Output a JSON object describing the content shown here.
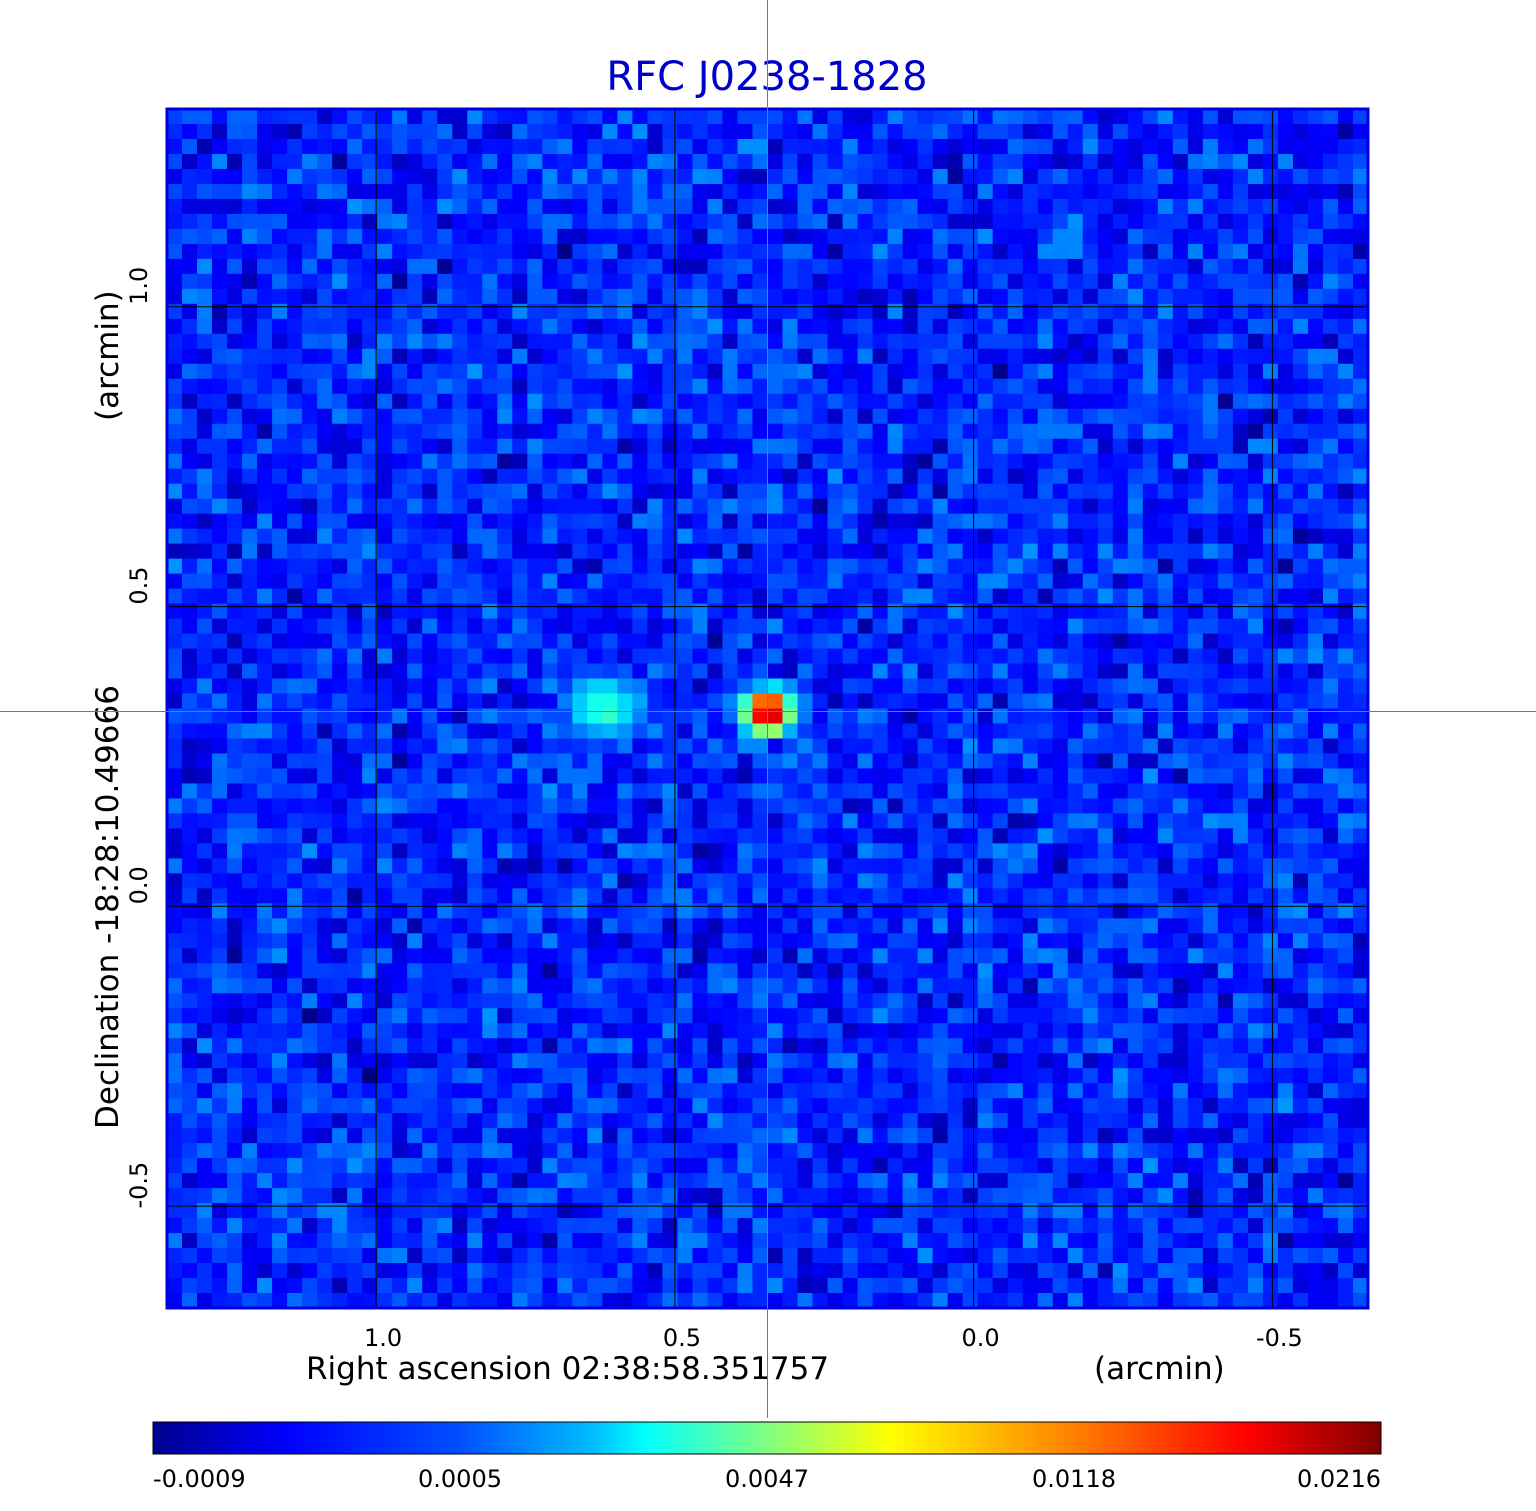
{
  "chart_data": {
    "type": "heatmap",
    "title": "RFC J0238-1828",
    "xlabel": "Right ascension  02:38:58.351757",
    "xunit": "(arcmin)",
    "ylabel": "Declination  -18:28:10.49666",
    "yunit": "(arcmin)",
    "xlim": [
      1.35,
      -0.66
    ],
    "ylim": [
      -0.67,
      1.33
    ],
    "x_ticks": [
      1.0,
      0.5,
      0.0,
      -0.5
    ],
    "x_tick_labels": [
      "1.0",
      "0.5",
      "0.0",
      "-0.5"
    ],
    "y_ticks": [
      1.0,
      0.5,
      0.0,
      -0.5
    ],
    "y_tick_labels": [
      "1.0",
      "0.5",
      "0.0",
      "-0.5"
    ],
    "grid": true,
    "crosshair": {
      "x": 0.345,
      "y": 0.325
    },
    "colorbar": {
      "colormap": "jet",
      "ticks": [
        -0.0009,
        0.0005,
        0.0047,
        0.0118,
        0.0216
      ],
      "tick_labels": [
        "-0.0009",
        "0.0005",
        "0.0047",
        "0.0118",
        "0.0216"
      ],
      "range": [
        -0.0009,
        0.0216
      ]
    },
    "sources": [
      {
        "x": 0.345,
        "y": 0.325,
        "peak": 0.0216
      },
      {
        "x": 0.615,
        "y": 0.33,
        "peak": 0.0035
      }
    ],
    "noise_level": 0.0004
  },
  "colors": {
    "title": "#0000cc",
    "frame": "#0000dd",
    "grid": "#000000",
    "crosshair": "#00cc00"
  }
}
